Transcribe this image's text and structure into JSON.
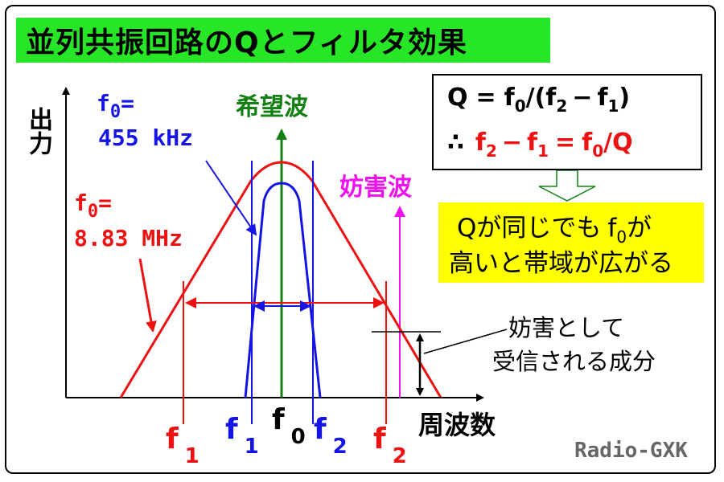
{
  "title": "並列共振回路のQとフィルタ効果",
  "axes": {
    "y_label": "出力",
    "x_label": "周波数"
  },
  "signals": {
    "desired": "希望波",
    "interference": "妨害波"
  },
  "curves": {
    "blue": {
      "f0_label": "f",
      "f0_sub": "0",
      "f0_eq": "=",
      "f0_value": "455 kHz"
    },
    "red": {
      "f0_label": "f",
      "f0_sub": "0",
      "f0_eq": "=",
      "f0_value": "8.83 MHz"
    }
  },
  "formula": {
    "line1_Q": "Q",
    "line1_eq": "=",
    "line1_f": "f",
    "line1_f_sub": "0",
    "line1_open": "/(f",
    "line1_f2_sub": "2",
    "line1_minus": "−",
    "line1_f1": "f",
    "line1_f1_sub": "1",
    "line1_close": ")",
    "line2_therefore": "∴",
    "line2_f2": "f",
    "line2_f2_sub": "2",
    "line2_minus": "−",
    "line2_f1": "f",
    "line2_f1_sub": "1",
    "line2_eq": "=",
    "line2_f0": "f",
    "line2_f0_sub": "0",
    "line2_slashQ": "/Q"
  },
  "note": {
    "line1_a": "Qが同じでも",
    "line1_f": "f",
    "line1_sub": "0",
    "line1_b": "が",
    "line2": "高いと帯域が広がる"
  },
  "interference_note": {
    "line1": "妨害として",
    "line2": "受信される成分"
  },
  "x_ticks": {
    "red_f1": "f",
    "red_f1_sub": "1",
    "blue_f1": "f",
    "blue_f1_sub": "1",
    "f0": "f",
    "f0_sub": "0",
    "blue_f2": "f",
    "blue_f2_sub": "2",
    "red_f2": "f",
    "red_f2_sub": "2"
  },
  "credit": "Radio-GXK",
  "colors": {
    "title_bg": "#27e627",
    "note_bg": "#ffff00",
    "red": "#ee1111",
    "blue": "#1414e6",
    "green": "#128012",
    "magenta": "#ee11ee"
  }
}
